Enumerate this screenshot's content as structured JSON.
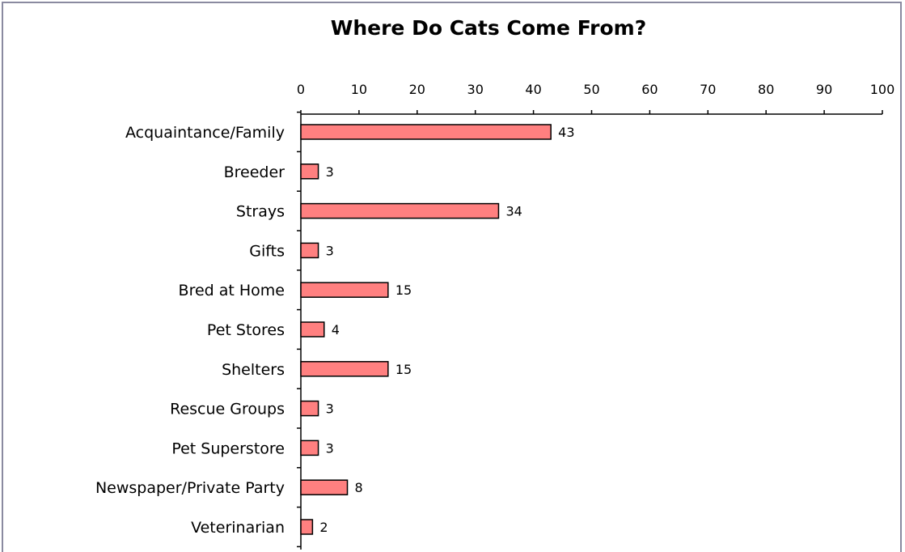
{
  "chart_data": {
    "type": "bar",
    "orientation": "horizontal",
    "title": "Where Do Cats Come From?",
    "xlabel": "",
    "ylabel": "",
    "xlim": [
      0,
      100
    ],
    "ticks": [
      0,
      10,
      20,
      30,
      40,
      50,
      60,
      70,
      80,
      90,
      100
    ],
    "x_axis_position": "top",
    "grid": false,
    "categories": [
      "Acquaintance/Family",
      "Breeder",
      "Strays",
      "Gifts",
      "Bred at Home",
      "Pet Stores",
      "Shelters",
      "Rescue Groups",
      "Pet Superstore",
      "Newspaper/Private Party",
      "Veterinarian"
    ],
    "values": [
      43,
      3,
      34,
      3,
      15,
      4,
      15,
      3,
      3,
      8,
      2
    ],
    "bar_color": "#ff8080",
    "data_labels": true
  }
}
